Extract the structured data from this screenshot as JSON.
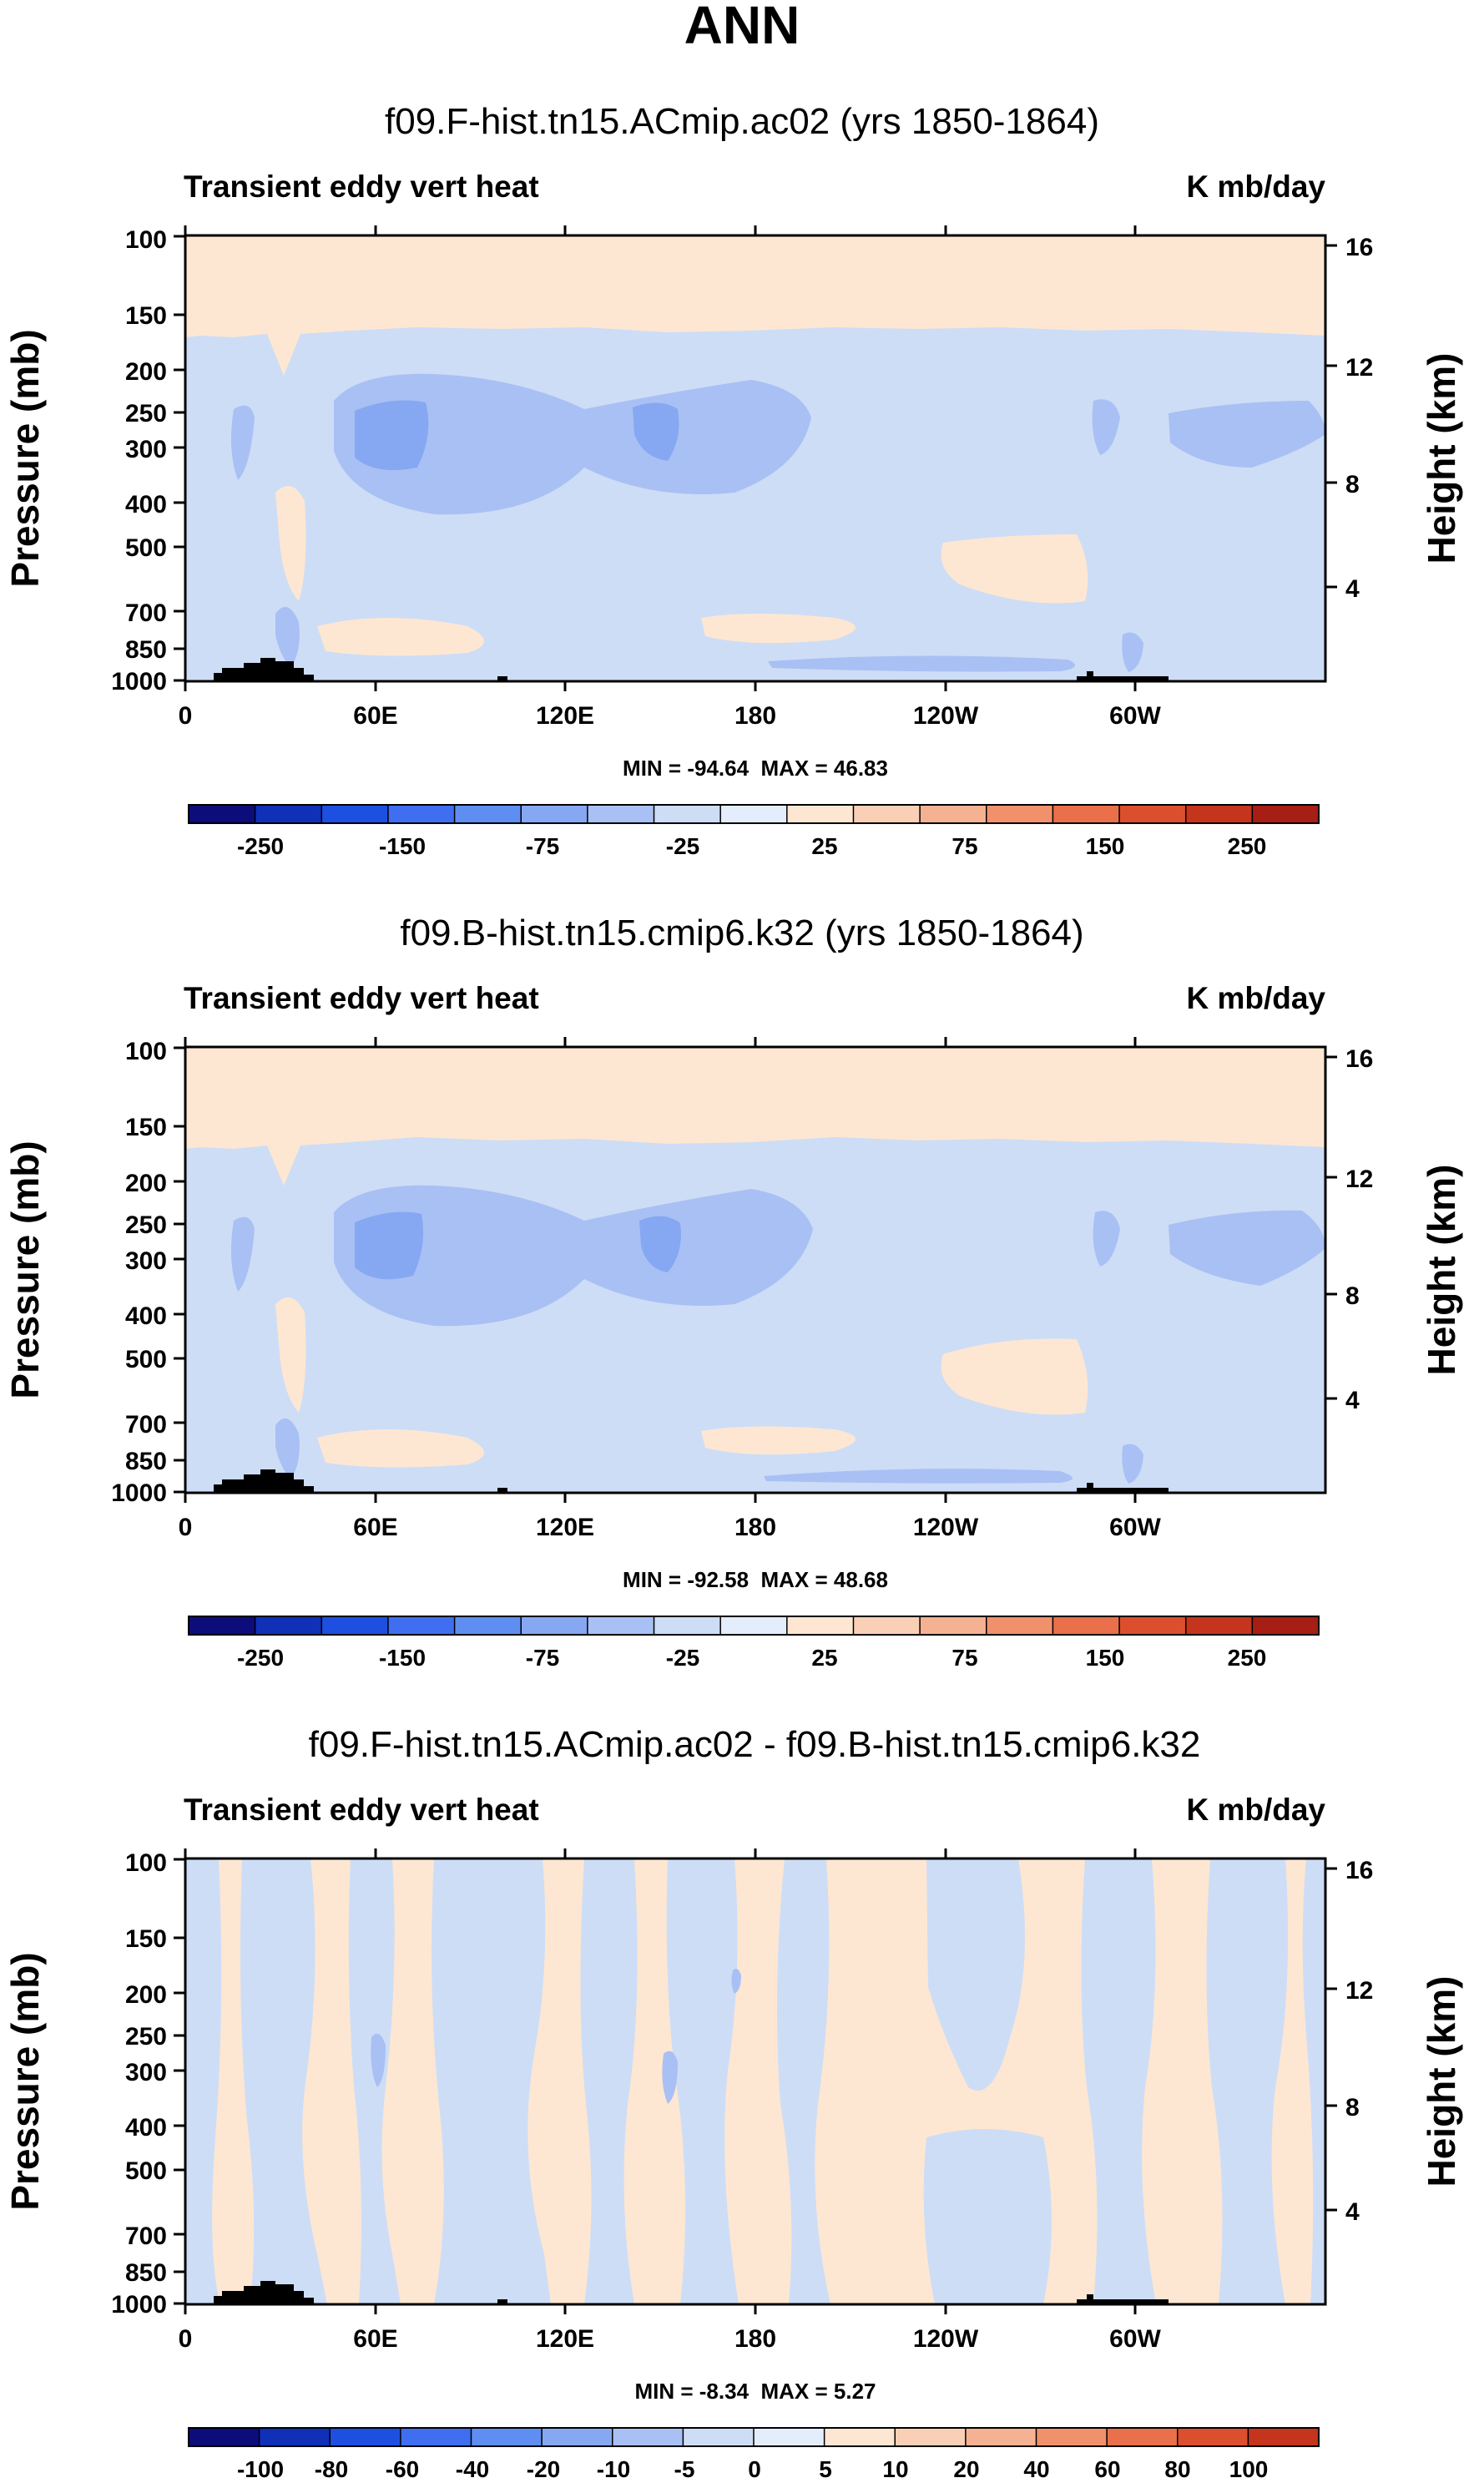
{
  "figure_title": "ANN",
  "colors": {
    "background": "#ffffff",
    "text": "#000000",
    "topography": "#000000",
    "frame": "#000000"
  },
  "chart_data": [
    {
      "type": "heatmap",
      "title": "f09.F-hist.tn15.ACmip.ac02 (yrs 1850-1864)",
      "left_label": "Transient eddy vert heat",
      "right_label": "K mb/day",
      "ylabel": "Pressure (mb)",
      "ylabel_right": "Height (km)",
      "x_ticks": [
        "0",
        "60E",
        "120E",
        "180",
        "120W",
        "60W"
      ],
      "y_ticks": [
        "100",
        "150",
        "200",
        "250",
        "300",
        "400",
        "500",
        "700",
        "850",
        "1000"
      ],
      "y_ticks_right": [
        "16",
        "12",
        "8",
        "4"
      ],
      "stats": "MIN = -94.64  MAX = 46.83",
      "levels": [
        -300,
        -250,
        -200,
        -150,
        -100,
        -75,
        -50,
        -25,
        -10,
        10,
        25,
        50,
        75,
        100,
        150,
        200,
        250,
        300
      ],
      "colorbar_labels": [
        "-250",
        "-150",
        "-75",
        "-25",
        "25",
        "75",
        "150",
        "250"
      ],
      "colors": [
        "#0c0c7a",
        "#1030b8",
        "#1d4fe0",
        "#3f6ff0",
        "#5f8ef2",
        "#86a8f2",
        "#a9c0f4",
        "#cdddf6",
        "#e3edfb",
        "#fde7d3",
        "#f9d0b6",
        "#f5b292",
        "#f0916c",
        "#e9704a",
        "#dc4f2e",
        "#c5341d",
        "#a71e14",
        "#7c0b0b"
      ]
    },
    {
      "type": "heatmap",
      "title": "f09.B-hist.tn15.cmip6.k32 (yrs 1850-1864)",
      "left_label": "Transient eddy vert heat",
      "right_label": "K mb/day",
      "ylabel": "Pressure (mb)",
      "ylabel_right": "Height (km)",
      "x_ticks": [
        "0",
        "60E",
        "120E",
        "180",
        "120W",
        "60W"
      ],
      "y_ticks": [
        "100",
        "150",
        "200",
        "250",
        "300",
        "400",
        "500",
        "700",
        "850",
        "1000"
      ],
      "y_ticks_right": [
        "16",
        "12",
        "8",
        "4"
      ],
      "stats": "MIN = -92.58  MAX = 48.68",
      "levels": [
        -300,
        -250,
        -200,
        -150,
        -100,
        -75,
        -50,
        -25,
        -10,
        10,
        25,
        50,
        75,
        100,
        150,
        200,
        250,
        300
      ],
      "colorbar_labels": [
        "-250",
        "-150",
        "-75",
        "-25",
        "25",
        "75",
        "150",
        "250"
      ],
      "colors": [
        "#0c0c7a",
        "#1030b8",
        "#1d4fe0",
        "#3f6ff0",
        "#5f8ef2",
        "#86a8f2",
        "#a9c0f4",
        "#cdddf6",
        "#e3edfb",
        "#fde7d3",
        "#f9d0b6",
        "#f5b292",
        "#f0916c",
        "#e9704a",
        "#dc4f2e",
        "#c5341d",
        "#a71e14",
        "#7c0b0b"
      ]
    },
    {
      "type": "heatmap",
      "title": "f09.F-hist.tn15.ACmip.ac02 - f09.B-hist.tn15.cmip6.k32",
      "left_label": "Transient eddy vert heat",
      "right_label": "K mb/day",
      "ylabel": "Pressure (mb)",
      "ylabel_right": "Height (km)",
      "x_ticks": [
        "0",
        "60E",
        "120E",
        "180",
        "120W",
        "60W"
      ],
      "y_ticks": [
        "100",
        "150",
        "200",
        "250",
        "300",
        "400",
        "500",
        "700",
        "850",
        "1000"
      ],
      "y_ticks_right": [
        "16",
        "12",
        "8",
        "4"
      ],
      "stats": "MIN = -8.34  MAX = 5.27",
      "levels": [
        -120,
        -100,
        -80,
        -60,
        -40,
        -20,
        -10,
        -5,
        0,
        5,
        10,
        20,
        40,
        60,
        80,
        100,
        120
      ],
      "colorbar_labels": [
        "-100",
        "-80",
        "-60",
        "-40",
        "-20",
        "-10",
        "-5",
        "0",
        "5",
        "10",
        "20",
        "40",
        "60",
        "80",
        "100"
      ],
      "colors": [
        "#0c0c7a",
        "#1030b8",
        "#1d4fe0",
        "#3f6ff0",
        "#5f8ef2",
        "#86a8f2",
        "#a9c0f4",
        "#cdddf6",
        "#e3edfb",
        "#fde7d3",
        "#f9d0b6",
        "#f5b292",
        "#f0916c",
        "#e9704a",
        "#dc4f2e",
        "#c5341d",
        "#a71e14",
        "#7c0b0b"
      ]
    }
  ]
}
